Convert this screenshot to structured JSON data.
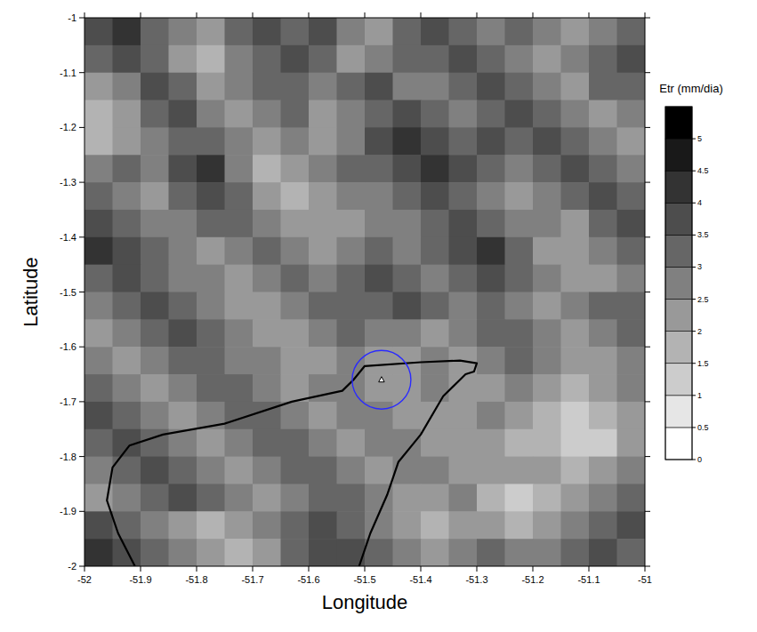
{
  "chart_data": {
    "type": "heatmap",
    "xlabel": "Longitude",
    "ylabel": "Latitude",
    "xlim": [
      -52,
      -51
    ],
    "ylim": [
      -2,
      -1
    ],
    "xticks": [
      -52,
      -51.9,
      -51.8,
      -51.7,
      -51.6,
      -51.5,
      -51.4,
      -51.3,
      -51.2,
      -51.1,
      -51
    ],
    "yticks": [
      -1,
      -1.1,
      -1.2,
      -1.3,
      -1.4,
      -1.5,
      -1.6,
      -1.7,
      -1.8,
      -1.9,
      -2
    ],
    "x": [
      -51.975,
      -51.925,
      -51.875,
      -51.825,
      -51.775,
      -51.725,
      -51.675,
      -51.625,
      -51.575,
      -51.525,
      -51.475,
      -51.425,
      -51.375,
      -51.325,
      -51.275,
      -51.225,
      -51.175,
      -51.125,
      -51.075,
      -51.025
    ],
    "y": [
      -1.025,
      -1.075,
      -1.125,
      -1.175,
      -1.225,
      -1.275,
      -1.325,
      -1.375,
      -1.425,
      -1.475,
      -1.525,
      -1.575,
      -1.625,
      -1.675,
      -1.725,
      -1.775,
      -1.825,
      -1.875,
      -1.925,
      -1.975
    ],
    "cells": [
      [
        3.5,
        4,
        3,
        2.5,
        2,
        3,
        3.5,
        3,
        3.5,
        2.5,
        2,
        3,
        3.5,
        3,
        2.5,
        3,
        2.5,
        2,
        2.5,
        3
      ],
      [
        3,
        3.5,
        3,
        2,
        1.5,
        2.5,
        3,
        3.5,
        3,
        2,
        2.5,
        3,
        3,
        3.5,
        3,
        2.5,
        2,
        2.5,
        3,
        3.5
      ],
      [
        2,
        2.5,
        3.5,
        3,
        2,
        2.5,
        3,
        3,
        2.5,
        3,
        3.5,
        2.5,
        2.5,
        3,
        3.5,
        3,
        2.5,
        2,
        3,
        3
      ],
      [
        1.5,
        2,
        3,
        3.5,
        2.5,
        2,
        2.5,
        3,
        2,
        2.5,
        3,
        3.5,
        3,
        2.5,
        3,
        3.5,
        3,
        2.5,
        2,
        2.5
      ],
      [
        1.5,
        2,
        2.5,
        3,
        3,
        2.5,
        2,
        2.5,
        2,
        2.5,
        3.5,
        4,
        3.5,
        3,
        3.5,
        3,
        3.5,
        3,
        2.5,
        2
      ],
      [
        2.5,
        3,
        2.5,
        3.5,
        4,
        2.5,
        1.5,
        2,
        2.5,
        3,
        3,
        3.5,
        4,
        3.5,
        3,
        2.5,
        3,
        3.5,
        3,
        2.5
      ],
      [
        3,
        2.5,
        2,
        3,
        3.5,
        3,
        2,
        1.5,
        2,
        2.5,
        2.5,
        3,
        3.5,
        3,
        2.5,
        2,
        2.5,
        3,
        3.5,
        3
      ],
      [
        3.5,
        3,
        2.5,
        2.5,
        3,
        3,
        2.5,
        2,
        2,
        2,
        2.5,
        2.5,
        3,
        3.5,
        3,
        2.5,
        2.5,
        2,
        3,
        3.5
      ],
      [
        4,
        3.5,
        3,
        2.5,
        2,
        2.5,
        3,
        2.5,
        2,
        2.5,
        3,
        2.5,
        3,
        3.5,
        4,
        3,
        2,
        2,
        2.5,
        3
      ],
      [
        3,
        3.5,
        3,
        2.5,
        2.5,
        2,
        2.5,
        3,
        2.5,
        3,
        3.5,
        3,
        2.5,
        3,
        3.5,
        3,
        2.5,
        2,
        2,
        2.5
      ],
      [
        2.5,
        3,
        3.5,
        3,
        2.5,
        2,
        2,
        2.5,
        3,
        3,
        3,
        3.5,
        3,
        2.5,
        3,
        2.5,
        2,
        2.5,
        3,
        3
      ],
      [
        2,
        2.5,
        3,
        3.5,
        3,
        2.5,
        2,
        2,
        2.5,
        3,
        2.5,
        2.5,
        2,
        2.5,
        3,
        3,
        2.5,
        2,
        2.5,
        3
      ],
      [
        2.5,
        2,
        2.5,
        3,
        3,
        2.5,
        2.5,
        2,
        2,
        2.5,
        2,
        2,
        2.5,
        2,
        2.5,
        3,
        2.5,
        2,
        2,
        2.5
      ],
      [
        3,
        2.5,
        2,
        2.5,
        3,
        3,
        2.5,
        2,
        2.5,
        2.5,
        2,
        2,
        2.5,
        2,
        2,
        2.5,
        2,
        1.5,
        2,
        2.5
      ],
      [
        3.5,
        3,
        2.5,
        2,
        2.5,
        3,
        3,
        2.5,
        2,
        2.5,
        2.5,
        2,
        2,
        2,
        2.5,
        2,
        1.5,
        1,
        1.5,
        2
      ],
      [
        3,
        3.5,
        3,
        2.5,
        2,
        2.5,
        3,
        3,
        2.5,
        2,
        2.5,
        2.5,
        2,
        2,
        2,
        1.5,
        1.5,
        1,
        1,
        2
      ],
      [
        2.5,
        3,
        3.5,
        3,
        2.5,
        2,
        2.5,
        3,
        3,
        2.5,
        2,
        2.5,
        2.5,
        2,
        2,
        2,
        2,
        1.5,
        2,
        2.5
      ],
      [
        2,
        2.5,
        3,
        3.5,
        3,
        2.5,
        2,
        2.5,
        3,
        3,
        2.5,
        2,
        2,
        2.5,
        1.5,
        1,
        1.5,
        2,
        2.5,
        3
      ],
      [
        3.5,
        3,
        2.5,
        2,
        1.5,
        2,
        2.5,
        3,
        3.5,
        3,
        2.5,
        2,
        1.5,
        2,
        2,
        1.5,
        2,
        2.5,
        3,
        3.5
      ],
      [
        4,
        3.5,
        3,
        2.5,
        2,
        1.5,
        2,
        3,
        3.5,
        3.5,
        3,
        2.5,
        2,
        2.5,
        3,
        2.5,
        2.5,
        3,
        3.5,
        3
      ]
    ],
    "colorbar": {
      "title": "Etr (mm/dia)",
      "range": [
        0,
        5.5
      ],
      "ticks": [
        0,
        0.5,
        1,
        1.5,
        2,
        2.5,
        3,
        3.5,
        4,
        4.5,
        5
      ]
    },
    "coastline": {
      "x": [
        -51.91,
        -51.94,
        -51.96,
        -51.95,
        -51.92,
        -51.86,
        -51.75,
        -51.63,
        -51.54,
        -51.52,
        -51.5,
        -51.4,
        -51.33,
        -51.3,
        -51.305,
        -51.32,
        -51.33,
        -51.36,
        -51.4,
        -51.44,
        -51.46,
        -51.49,
        -51.51
      ],
      "y": [
        -2,
        -1.94,
        -1.88,
        -1.82,
        -1.78,
        -1.76,
        -1.74,
        -1.7,
        -1.68,
        -1.66,
        -1.635,
        -1.628,
        -1.625,
        -1.63,
        -1.645,
        -1.65,
        -1.66,
        -1.69,
        -1.76,
        -1.81,
        -1.87,
        -1.94,
        -2
      ]
    },
    "station": {
      "x": -51.47,
      "y": -1.66
    }
  }
}
